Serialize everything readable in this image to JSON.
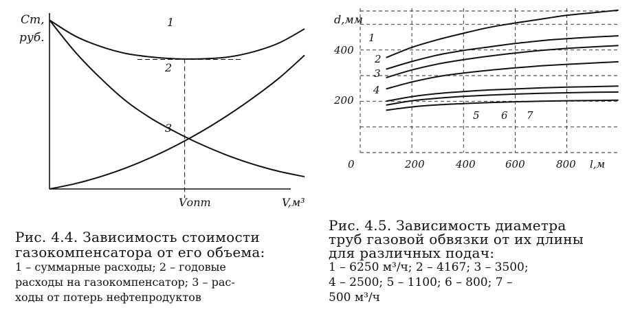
{
  "fig44": {
    "y_label_top": "Ст,",
    "y_label_bottom": "руб.",
    "x_marker_label": "Vопт",
    "x_axis_label": "V,м³",
    "curve_labels": [
      "1",
      "2",
      "3"
    ],
    "caption_lines": [
      "Рис. 4.4. Зависимость стоимости",
      "газокомпенсатора от его объема:",
      "1 – суммарные расходы; 2 – годовые",
      "расходы на газокомпенсатор; 3 – рас-",
      "ходы от потерь нефтепродуктов"
    ]
  },
  "fig45": {
    "y_label": "d,мм",
    "y_tick_labels": [
      "400",
      "200"
    ],
    "x_tick_labels": [
      "0",
      "200",
      "400",
      "600",
      "800"
    ],
    "x_label": "l,м",
    "left_curve_labels": [
      "1",
      "2",
      "3",
      "4"
    ],
    "bottom_curve_labels": [
      "5",
      "6",
      "7"
    ],
    "caption_lines": [
      "Рис. 4.5. Зависимость диаметра",
      "труб газовой обвязки от их длины",
      "для различных подач:",
      "1 – 6250 м³/ч; 2 – 4167; 3 – 3500;",
      "4 – 2500; 5 – 1100; 6 – 800; 7 –",
      "500 м³/ч"
    ]
  },
  "chart_data": [
    {
      "type": "line",
      "title": "",
      "xlabel": "V,м³",
      "ylabel": "Ст, руб.",
      "x": [
        0,
        0.1,
        0.2,
        0.3,
        0.4,
        0.5,
        0.6,
        0.7,
        0.8,
        0.9,
        1.0
      ],
      "series": [
        {
          "name": "1",
          "values": [
            0.96,
            0.87,
            0.81,
            0.77,
            0.75,
            0.74,
            0.74,
            0.75,
            0.78,
            0.83,
            0.91
          ]
        },
        {
          "name": "2",
          "values": [
            0.96,
            0.78,
            0.63,
            0.5,
            0.4,
            0.32,
            0.25,
            0.19,
            0.14,
            0.1,
            0.07
          ]
        },
        {
          "name": "3",
          "values": [
            0.0,
            0.03,
            0.07,
            0.12,
            0.18,
            0.25,
            0.33,
            0.42,
            0.52,
            0.63,
            0.76
          ]
        }
      ],
      "marker_x": 0.53,
      "grid": false
    },
    {
      "type": "line",
      "title": "",
      "xlabel": "l,м",
      "ylabel": "d,мм",
      "xlim": [
        0,
        1000
      ],
      "ylim": [
        0,
        550
      ],
      "x": [
        100,
        200,
        300,
        400,
        500,
        600,
        700,
        800,
        900,
        1000
      ],
      "series": [
        {
          "name": "1",
          "values": [
            370,
            410,
            440,
            465,
            488,
            505,
            520,
            535,
            545,
            555
          ]
        },
        {
          "name": "2",
          "values": [
            325,
            355,
            380,
            398,
            412,
            425,
            436,
            444,
            450,
            455
          ]
        },
        {
          "name": "3",
          "values": [
            292,
            322,
            345,
            362,
            376,
            388,
            398,
            406,
            412,
            417
          ]
        },
        {
          "name": "4",
          "values": [
            248,
            275,
            296,
            310,
            321,
            330,
            338,
            344,
            349,
            354
          ]
        },
        {
          "name": "5",
          "values": [
            200,
            218,
            230,
            238,
            244,
            248,
            252,
            255,
            257,
            259
          ]
        },
        {
          "name": "6",
          "values": [
            185,
            202,
            212,
            219,
            224,
            228,
            231,
            233,
            235,
            236
          ]
        },
        {
          "name": "7",
          "values": [
            165,
            178,
            186,
            191,
            195,
            198,
            200,
            202,
            203,
            204
          ]
        }
      ],
      "grid": true,
      "grid_style": "dashed"
    }
  ]
}
